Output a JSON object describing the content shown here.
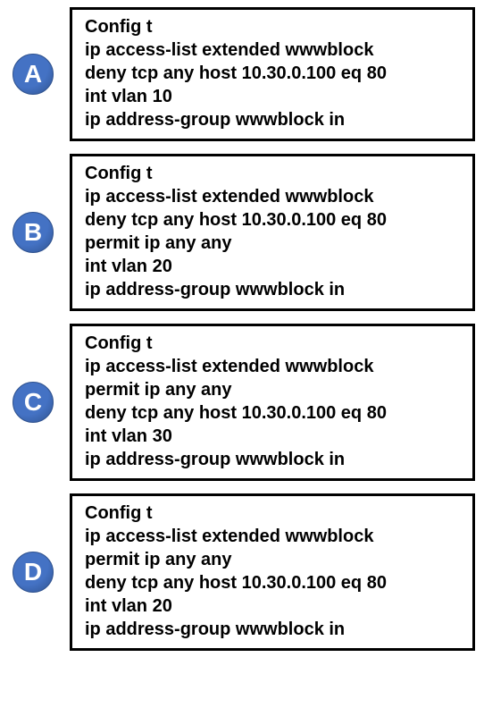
{
  "badge_bg": "#4472c4",
  "badge_border": "#2f528f",
  "text_color": "#000000",
  "options": [
    {
      "letter": "A",
      "lines": [
        "Config t",
        "ip access-list extended wwwblock",
        "deny tcp any host 10.30.0.100 eq 80",
        "int vlan 10",
        "ip address-group wwwblock in"
      ]
    },
    {
      "letter": "B",
      "lines": [
        "Config t",
        "ip access-list extended wwwblock",
        "deny tcp any host 10.30.0.100 eq 80",
        "permit ip any any",
        "int vlan 20",
        "ip address-group wwwblock in"
      ]
    },
    {
      "letter": "C",
      "lines": [
        "Config t",
        "ip access-list extended wwwblock",
        "permit ip any any",
        "deny tcp any host 10.30.0.100 eq 80",
        "int vlan 30",
        "ip address-group wwwblock in"
      ]
    },
    {
      "letter": "D",
      "lines": [
        "Config t",
        "ip access-list extended wwwblock",
        "permit ip any any",
        "deny tcp any host 10.30.0.100 eq 80",
        "int vlan 20",
        "ip address-group wwwblock in"
      ]
    }
  ]
}
